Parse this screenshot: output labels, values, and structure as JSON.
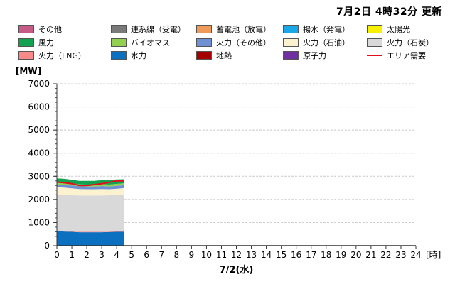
{
  "header": {
    "update_text": "7月2日  4時32分  更新"
  },
  "legend": [
    {
      "label": "その他",
      "color": "#c85a87",
      "type": "box"
    },
    {
      "label": "連系線（受電）",
      "color": "#7a7a7a",
      "type": "box"
    },
    {
      "label": "蓄電池（放電）",
      "color": "#f09a5a",
      "type": "box"
    },
    {
      "label": "揚水（発電）",
      "color": "#1aa7e8",
      "type": "box"
    },
    {
      "label": "太陽光",
      "color": "#f7f000",
      "type": "box"
    },
    {
      "label": "風力",
      "color": "#13a350",
      "type": "box"
    },
    {
      "label": "バイオマス",
      "color": "#92d050",
      "type": "box"
    },
    {
      "label": "火力（その他）",
      "color": "#6f91d4",
      "type": "box"
    },
    {
      "label": "火力（石油）",
      "color": "#fdf2d0",
      "type": "box"
    },
    {
      "label": "火力（石炭）",
      "color": "#d9d9d9",
      "type": "box"
    },
    {
      "label": "火力（LNG）",
      "color": "#f98a8a",
      "type": "box"
    },
    {
      "label": "水力",
      "color": "#0b70c0",
      "type": "box"
    },
    {
      "label": "地熱",
      "color": "#a50000",
      "type": "box"
    },
    {
      "label": "原子力",
      "color": "#7030a0",
      "type": "box"
    },
    {
      "label": "エリア需要",
      "color": "#e0101a",
      "type": "line"
    }
  ],
  "chart_data": {
    "type": "area",
    "stacked": true,
    "xlabel": "7/2(水)",
    "ylabel": "[MW]",
    "x_unit": "[時]",
    "xlim": [
      0,
      24
    ],
    "ylim": [
      0,
      7000
    ],
    "yticks": [
      0,
      1000,
      2000,
      3000,
      4000,
      5000,
      6000,
      7000
    ],
    "xticks": [
      0,
      1,
      2,
      3,
      4,
      5,
      6,
      7,
      8,
      9,
      10,
      11,
      12,
      13,
      14,
      15,
      16,
      17,
      18,
      19,
      20,
      21,
      22,
      23,
      24
    ],
    "grid": "horizontal-dashed",
    "x": [
      0,
      0.5,
      1,
      1.5,
      2,
      2.5,
      3,
      3.5,
      4,
      4.5
    ],
    "series": [
      {
        "name": "水力",
        "color": "#0b70c0",
        "values": [
          620,
          610,
          600,
          580,
          580,
          580,
          580,
          590,
          600,
          600
        ]
      },
      {
        "name": "火力（LNG）",
        "color": "#f98a8a",
        "values": [
          20,
          20,
          20,
          20,
          20,
          20,
          20,
          20,
          20,
          20
        ]
      },
      {
        "name": "火力（石炭）",
        "color": "#d9d9d9",
        "values": [
          1560,
          1560,
          1560,
          1570,
          1570,
          1570,
          1570,
          1570,
          1570,
          1570
        ]
      },
      {
        "name": "火力（石油）",
        "color": "#fdf2d0",
        "values": [
          330,
          320,
          300,
          280,
          270,
          270,
          280,
          260,
          270,
          300
        ]
      },
      {
        "name": "火力（その他）",
        "color": "#6f91d4",
        "values": [
          110,
          110,
          120,
          120,
          120,
          120,
          130,
          120,
          130,
          130
        ]
      },
      {
        "name": "バイオマス",
        "color": "#92d050",
        "values": [
          80,
          80,
          80,
          80,
          80,
          80,
          80,
          80,
          80,
          80
        ]
      },
      {
        "name": "風力",
        "color": "#13a350",
        "values": [
          190,
          190,
          170,
          150,
          160,
          160,
          170,
          200,
          190,
          170
        ]
      }
    ],
    "demand": {
      "name": "エリア需要",
      "color": "#e0101a",
      "values": [
        2750,
        2720,
        2680,
        2600,
        2600,
        2640,
        2680,
        2740,
        2800,
        2800
      ]
    }
  }
}
